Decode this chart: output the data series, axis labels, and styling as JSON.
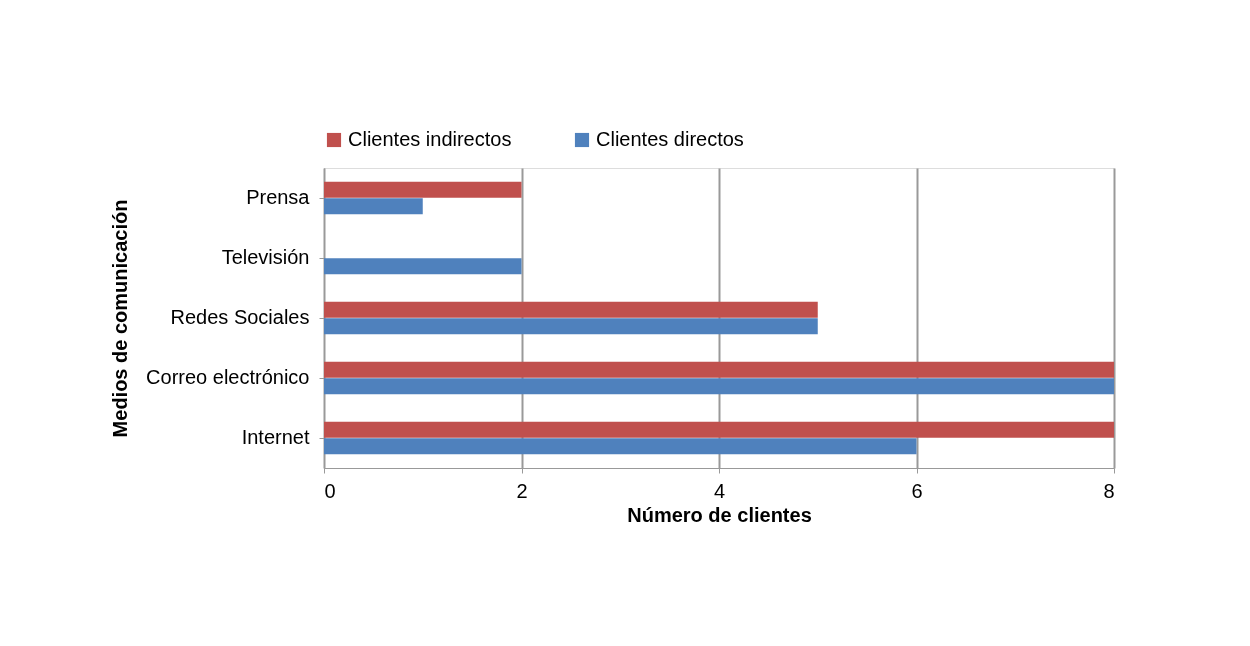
{
  "chart_data": {
    "type": "bar",
    "orientation": "horizontal",
    "xlabel": "Número de clientes",
    "ylabel": "Medios de comunicación",
    "categories": [
      "Prensa",
      "Televisión",
      "Redes Sociales",
      "Correo electrónico",
      "Internet"
    ],
    "series": [
      {
        "name": "Clientes indirectos",
        "color": "#c0504d",
        "values": [
          2,
          0,
          5,
          8,
          8
        ]
      },
      {
        "name": "Clientes directos",
        "color": "#4f81bd",
        "values": [
          1,
          2,
          5,
          8,
          6
        ]
      }
    ],
    "xlim": [
      0,
      8
    ],
    "xticks": [
      0,
      2,
      4,
      6,
      8
    ],
    "grid": "x",
    "legend": "top"
  }
}
